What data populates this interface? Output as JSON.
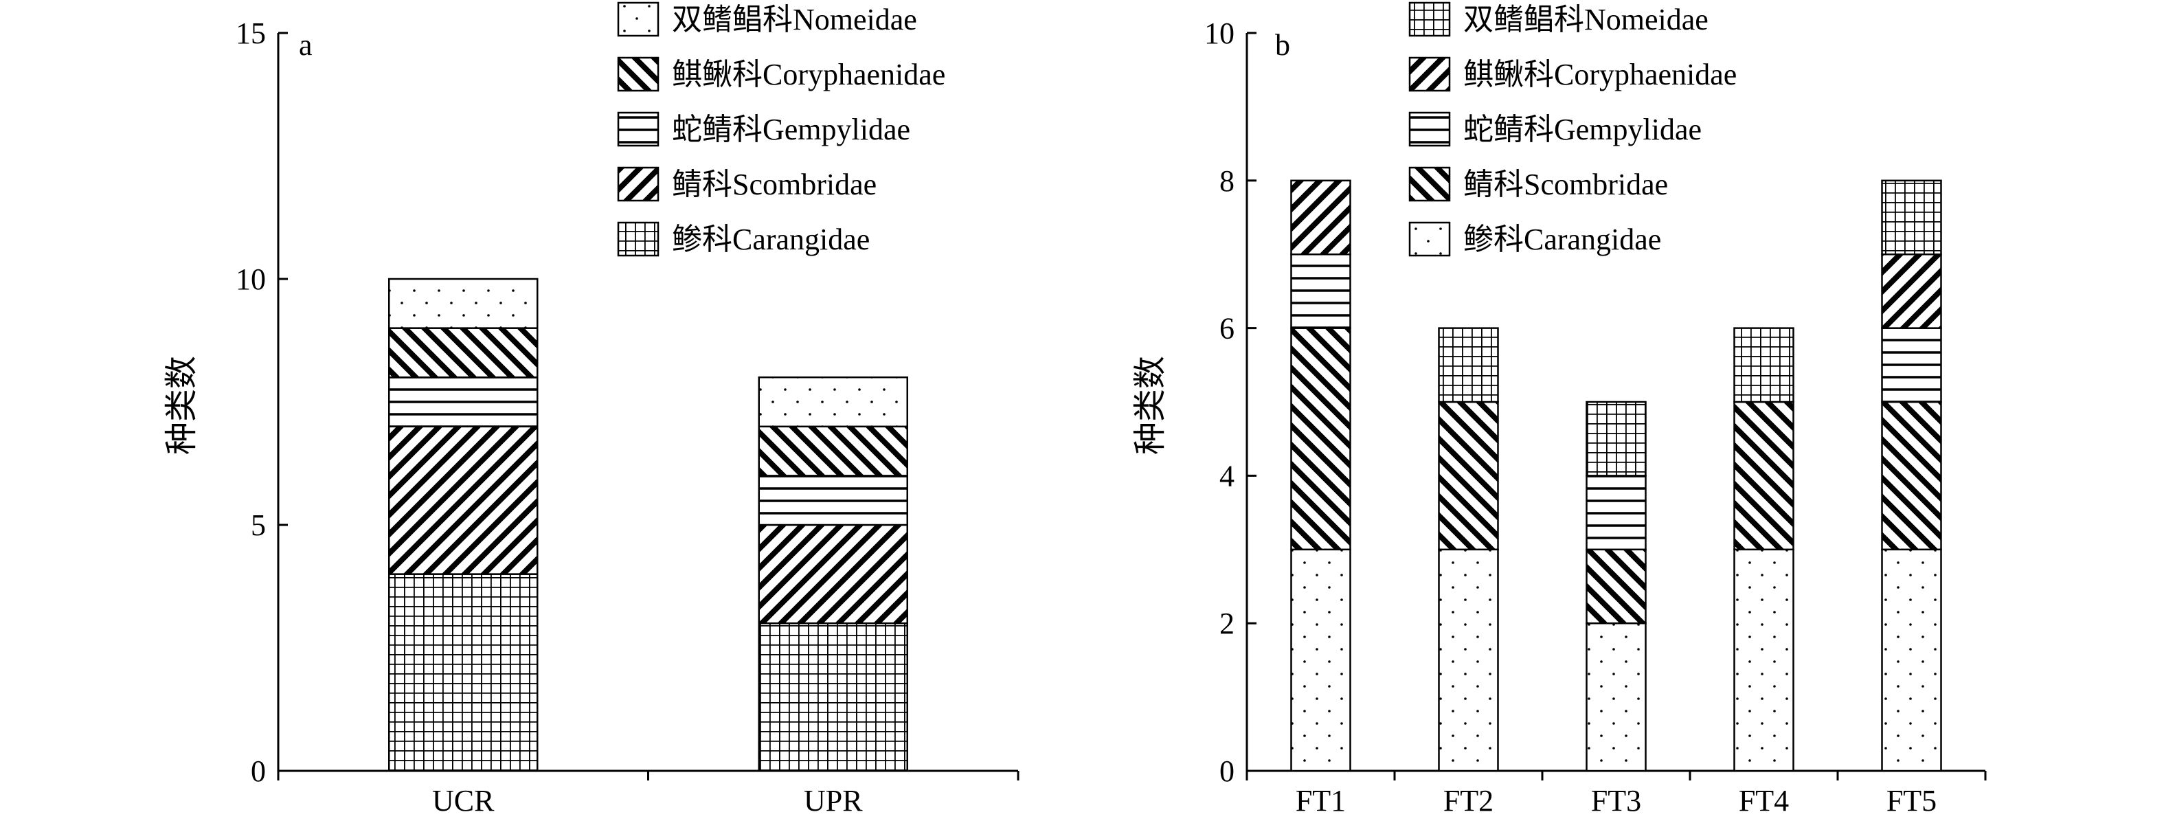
{
  "chart_data": [
    {
      "panel_label": "a",
      "type": "bar",
      "stacked": true,
      "categories": [
        "UCR",
        "UPR"
      ],
      "ylabel": "种类数",
      "xlabel": "",
      "ylim": [
        0,
        15
      ],
      "yticks": [
        "0",
        "5",
        "10",
        "15"
      ],
      "series": [
        {
          "name": "鲹科Carangidae",
          "pattern": "grid",
          "values": [
            4,
            3
          ]
        },
        {
          "name": "鲭科Scombridae",
          "pattern": "diag-right",
          "values": [
            3,
            2
          ]
        },
        {
          "name": "蛇鲭科Gempylidae",
          "pattern": "horizontal",
          "values": [
            1,
            1
          ]
        },
        {
          "name": "鲯鳅科Coryphaenidae",
          "pattern": "diag-left",
          "values": [
            1,
            1
          ]
        },
        {
          "name": "双鳍鲳科Nomeidae",
          "pattern": "dots",
          "values": [
            1,
            1
          ]
        }
      ],
      "legend": {
        "position": "top-right",
        "order": [
          "双鳍鲳科Nomeidae",
          "鲯鳅科Coryphaenidae",
          "蛇鲭科Gempylidae",
          "鲭科Scombridae",
          "鲹科Carangidae"
        ]
      }
    },
    {
      "panel_label": "b",
      "type": "bar",
      "stacked": true,
      "categories": [
        "FT1",
        "FT2",
        "FT3",
        "FT4",
        "FT5"
      ],
      "ylabel": "种类数",
      "xlabel": "",
      "ylim": [
        0,
        10
      ],
      "yticks": [
        "0",
        "2",
        "4",
        "6",
        "8",
        "10"
      ],
      "series": [
        {
          "name": "鲹科Carangidae",
          "pattern": "dots",
          "values": [
            3,
            3,
            2,
            3,
            3
          ]
        },
        {
          "name": "鲭科Scombridae",
          "pattern": "diag-left",
          "values": [
            3,
            2,
            1,
            2,
            2
          ]
        },
        {
          "name": "蛇鲭科Gempylidae",
          "pattern": "horizontal",
          "values": [
            1,
            0,
            1,
            0,
            1
          ]
        },
        {
          "name": "鲯鳅科Coryphaenidae",
          "pattern": "diag-right",
          "values": [
            1,
            0,
            0,
            0,
            1
          ]
        },
        {
          "name": "双鳍鲳科Nomeidae",
          "pattern": "grid",
          "values": [
            0,
            1,
            1,
            1,
            1
          ]
        }
      ],
      "legend": {
        "position": "top-right",
        "order": [
          "双鳍鲳科Nomeidae",
          "鲯鳅科Coryphaenidae",
          "蛇鲭科Gempylidae",
          "鲭科Scombridae",
          "鲹科Carangidae"
        ]
      }
    }
  ]
}
